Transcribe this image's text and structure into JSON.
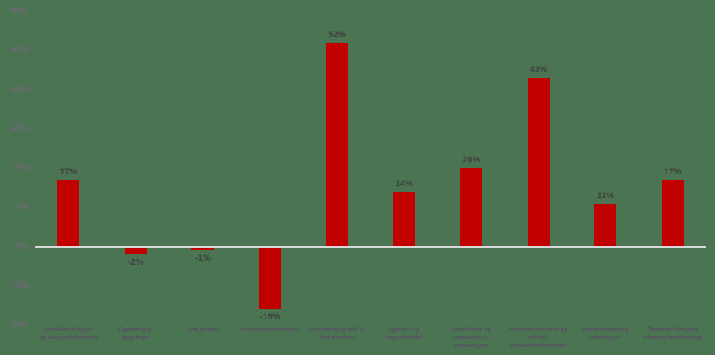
{
  "chart_data": {
    "type": "bar",
    "title": "",
    "xlabel": "",
    "ylabel": "",
    "ylim": [
      -20,
      60
    ],
    "grid": "zero-line-only",
    "legend": "none",
    "categories": [
      "Spesialisert bygge- og anleggsvirksomhet",
      "Oppføring av bygninger",
      "Detaljhandel",
      "Serveringsvirksomhet",
      "Omsetning og drift av fast eiendom",
      "Agentur- og engroshandel",
      "Handel med og reparasjon av motorvogner",
      "Arkitektvirksomhet og teknisk konsulentvirksomhet",
      "Landtransport og rørtransport",
      "Tjenester tilknyttet informasjonsteknologi"
    ],
    "values": [
      17,
      -2,
      -1,
      -16,
      52,
      14,
      20,
      43,
      11,
      17
    ],
    "value_labels": [
      "17%",
      "-2%",
      "-1%",
      "-16%",
      "52%",
      "14%",
      "20%",
      "43%",
      "11%",
      "17%"
    ],
    "y_ticks": [
      "60%",
      "50%",
      "40%",
      "30%",
      "20%",
      "10%",
      "0%",
      "-10%",
      "-20%"
    ],
    "y_tick_values": [
      60,
      50,
      40,
      30,
      20,
      10,
      0,
      -10,
      -20
    ],
    "colors": {
      "bar": "#c10000",
      "value_label": "#404040",
      "axis_label": "#6f6878",
      "category_label": "#575063",
      "zero_line": "#d9d9d9",
      "background": "#4a7452"
    }
  }
}
